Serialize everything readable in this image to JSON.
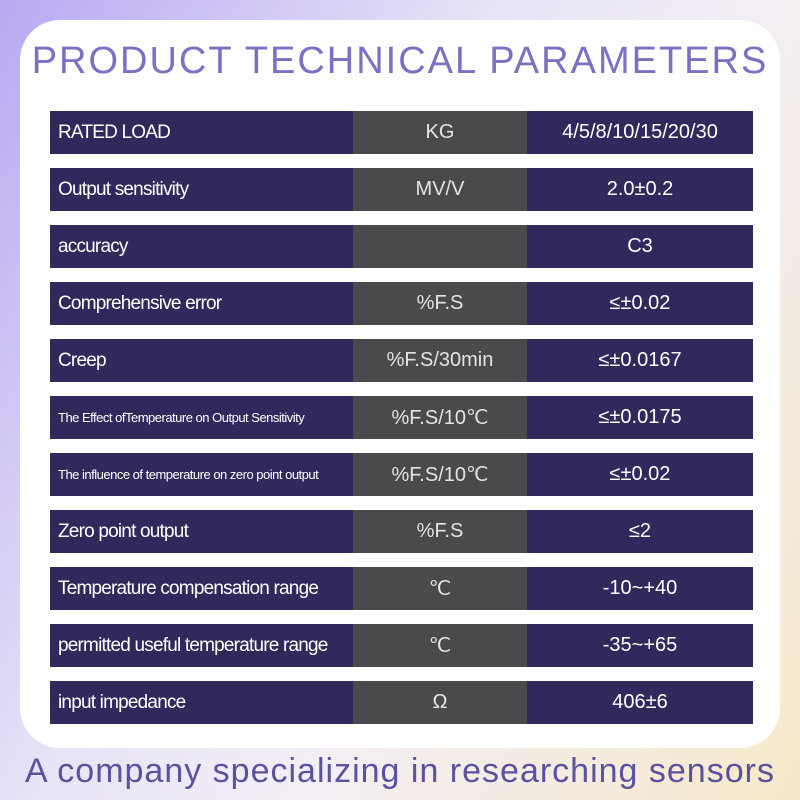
{
  "header": {
    "title": "PRODUCT TECHNICAL PARAMETERS"
  },
  "table": {
    "rows": [
      {
        "parameter": "RATED LOAD",
        "unit": "KG",
        "value": "4/5/8/10/15/20/30"
      },
      {
        "parameter": "Output sensitivity",
        "unit": "MV/V",
        "value": "2.0±0.2"
      },
      {
        "parameter": "accuracy",
        "value": "C3"
      },
      {
        "parameter": "Comprehensive error",
        "unit": "%F.S",
        "value": "≤±0.02"
      },
      {
        "parameter": "Creep",
        "unit": "%F.S/30min",
        "value": "≤±0.0167"
      },
      {
        "parameter": "The Effect ofTemperature on Output Sensitivity",
        "unit": "%F.S/10℃",
        "value": "≤±0.0175"
      },
      {
        "parameter": "The influence of temperature on zero point output",
        "unit": "%F.S/10℃",
        "value": "≤±0.02"
      },
      {
        "parameter": "Zero point output",
        "unit": "%F.S",
        "value": "≤2"
      },
      {
        "parameter": "Temperature compensation range",
        "unit": "℃",
        "value": "-10~+40"
      },
      {
        "parameter": "permitted useful temperature range",
        "unit": "℃",
        "value": "-35~+65"
      },
      {
        "parameter": "input impedance",
        "unit": "Ω",
        "value": "406±6"
      }
    ]
  },
  "footer": {
    "text": "A company specializing in researching sensors"
  }
}
